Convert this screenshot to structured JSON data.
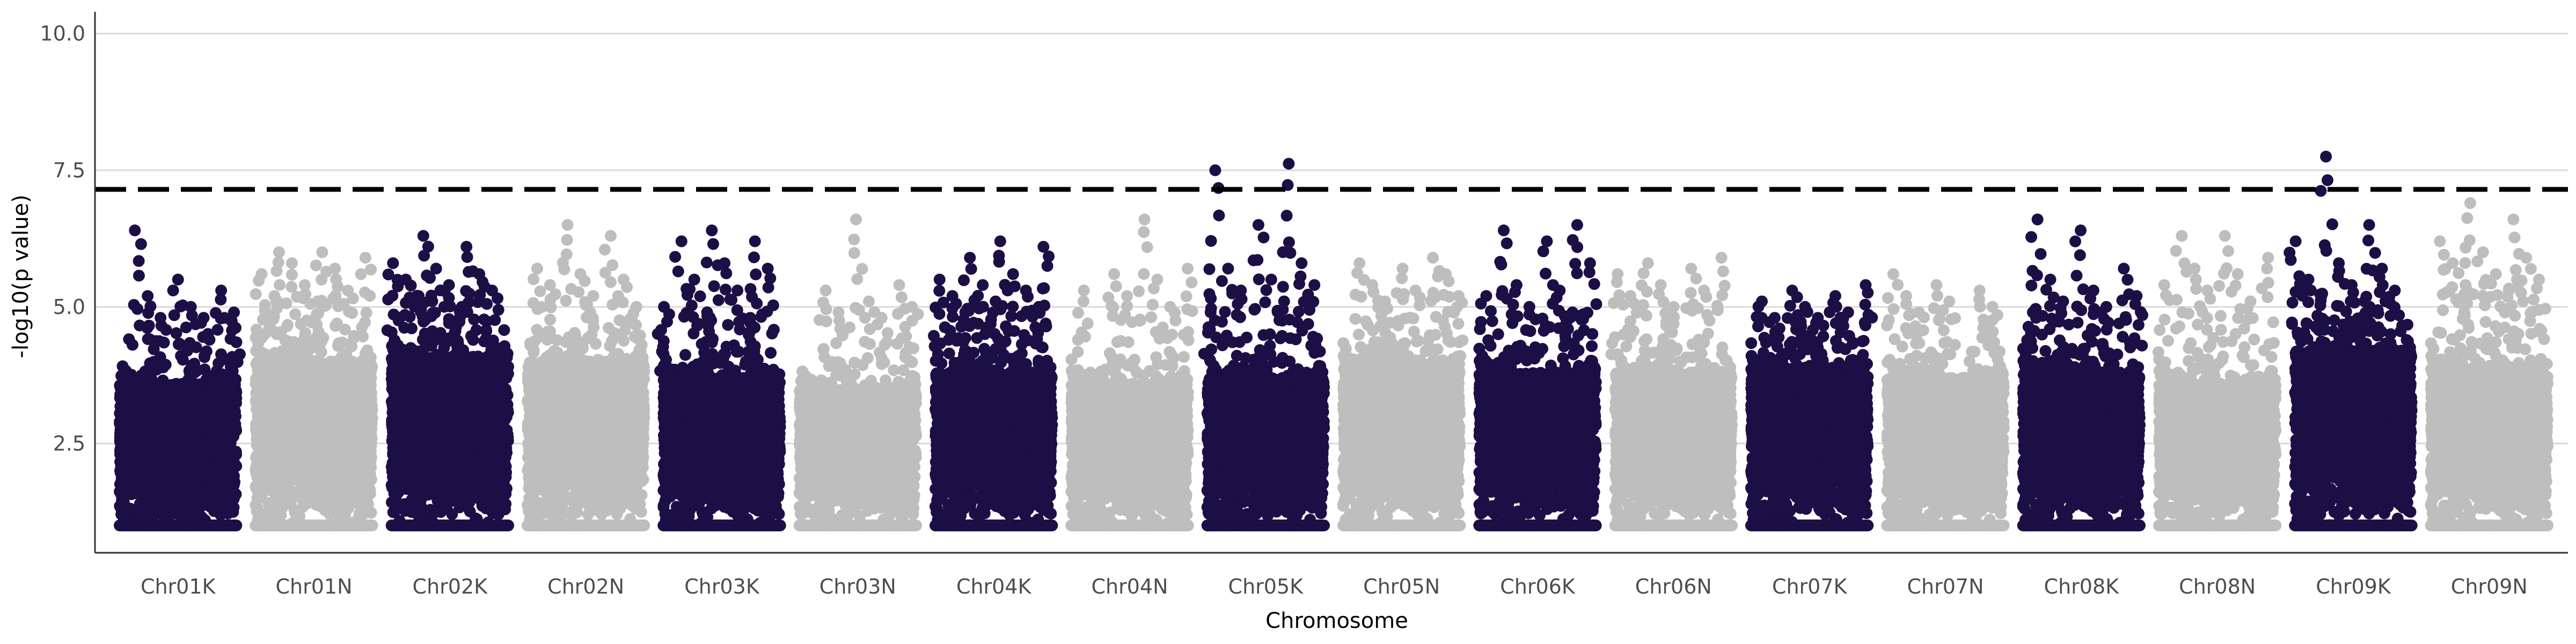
{
  "chart_data": {
    "type": "scatter",
    "title": "",
    "xlabel": "Chromosome",
    "ylabel": "-log10(p value)",
    "ylim": [
      0.5,
      10.4
    ],
    "yticks": [
      2.5,
      5.0,
      7.5,
      10.0
    ],
    "ytick_labels": [
      "2.5",
      "5.0",
      "7.5",
      "10.0"
    ],
    "grid": "horizontal major lines only",
    "legend": "none",
    "threshold": {
      "value": 7.15,
      "style": "dashed",
      "color": "#000000"
    },
    "colors": {
      "dark": "#1c0f45",
      "light": "#bebebe",
      "threshold": "#000000",
      "grid": "#d9d9d9",
      "axis": "#333333"
    },
    "chromosomes": [
      {
        "name": "Chr01K",
        "color": "dark",
        "n_points": 2000,
        "min": 1.0,
        "base_top": 3.6,
        "peaks": [
          6.4,
          5.5,
          5.3,
          5.2,
          5.0,
          4.9,
          4.8,
          4.8
        ]
      },
      {
        "name": "Chr01N",
        "color": "light",
        "n_points": 2000,
        "min": 1.0,
        "base_top": 4.0,
        "peaks": [
          6.0,
          6.0,
          5.9,
          5.8,
          5.7,
          5.6,
          5.4,
          5.3,
          5.2,
          5.1
        ]
      },
      {
        "name": "Chr02K",
        "color": "dark",
        "n_points": 2000,
        "min": 1.0,
        "base_top": 4.1,
        "peaks": [
          6.3,
          6.1,
          5.8,
          5.7,
          5.6,
          5.5,
          5.4,
          5.3,
          5.2,
          5.0
        ]
      },
      {
        "name": "Chr02N",
        "color": "light",
        "n_points": 2000,
        "min": 1.0,
        "base_top": 4.0,
        "peaks": [
          6.5,
          6.3,
          5.7,
          5.6,
          5.5,
          5.4,
          5.2,
          5.0
        ]
      },
      {
        "name": "Chr03K",
        "color": "dark",
        "n_points": 2000,
        "min": 1.0,
        "base_top": 3.7,
        "peaks": [
          6.4,
          6.2,
          6.2,
          5.8,
          5.7,
          5.5,
          5.3,
          5.0,
          4.9,
          4.8
        ]
      },
      {
        "name": "Chr03N",
        "color": "light",
        "n_points": 2000,
        "min": 1.0,
        "base_top": 3.5,
        "peaks": [
          6.6,
          5.4,
          5.3,
          5.1,
          5.0,
          4.9,
          4.8
        ]
      },
      {
        "name": "Chr04K",
        "color": "dark",
        "n_points": 2000,
        "min": 1.0,
        "base_top": 3.8,
        "peaks": [
          6.2,
          6.1,
          5.9,
          5.6,
          5.5,
          5.4,
          5.3,
          5.2,
          5.1,
          5.0,
          4.9
        ]
      },
      {
        "name": "Chr04N",
        "color": "light",
        "n_points": 2000,
        "min": 1.0,
        "base_top": 3.6,
        "peaks": [
          6.6,
          5.7,
          5.6,
          5.5,
          5.3,
          5.2,
          5.0
        ]
      },
      {
        "name": "Chr05K",
        "color": "dark",
        "n_points": 2000,
        "min": 1.0,
        "base_top": 3.7,
        "peaks": [
          7.62,
          7.5,
          6.5,
          5.8,
          5.7,
          5.5,
          5.4,
          5.3,
          5.1,
          4.9
        ]
      },
      {
        "name": "Chr05N",
        "color": "light",
        "n_points": 2000,
        "min": 1.0,
        "base_top": 3.9,
        "peaks": [
          5.9,
          5.8,
          5.7,
          5.6,
          5.4,
          5.3,
          5.2,
          5.1
        ]
      },
      {
        "name": "Chr06K",
        "color": "dark",
        "n_points": 2000,
        "min": 1.0,
        "base_top": 3.8,
        "peaks": [
          6.5,
          6.4,
          6.2,
          5.8,
          5.4,
          5.3,
          5.2,
          5.0,
          4.9
        ]
      },
      {
        "name": "Chr06N",
        "color": "light",
        "n_points": 2000,
        "min": 1.0,
        "base_top": 3.8,
        "peaks": [
          5.9,
          5.8,
          5.7,
          5.6,
          5.4,
          5.3,
          5.2,
          5.0
        ]
      },
      {
        "name": "Chr07K",
        "color": "dark",
        "n_points": 2000,
        "min": 1.0,
        "base_top": 3.9,
        "peaks": [
          5.4,
          5.3,
          5.2,
          5.1,
          5.0,
          4.9,
          4.8,
          4.8
        ]
      },
      {
        "name": "Chr07N",
        "color": "light",
        "n_points": 2000,
        "min": 1.0,
        "base_top": 3.7,
        "peaks": [
          5.6,
          5.4,
          5.3,
          5.2,
          5.1,
          5.0,
          4.9
        ]
      },
      {
        "name": "Chr08K",
        "color": "dark",
        "n_points": 2000,
        "min": 1.0,
        "base_top": 3.8,
        "peaks": [
          6.6,
          6.4,
          5.7,
          5.5,
          5.3,
          5.2,
          5.1,
          5.0,
          4.9
        ]
      },
      {
        "name": "Chr08N",
        "color": "light",
        "n_points": 2000,
        "min": 1.0,
        "base_top": 3.6,
        "peaks": [
          6.3,
          6.3,
          5.9,
          5.7,
          5.6,
          5.4,
          5.3,
          5.1
        ]
      },
      {
        "name": "Chr09K",
        "color": "dark",
        "n_points": 2000,
        "min": 1.0,
        "base_top": 4.2,
        "peaks": [
          7.75,
          6.5,
          6.2,
          5.8,
          5.7,
          5.5,
          5.4,
          5.3,
          5.2,
          5.1
        ]
      },
      {
        "name": "Chr09N",
        "color": "light",
        "n_points": 2000,
        "min": 1.0,
        "base_top": 3.9,
        "peaks": [
          6.9,
          6.6,
          6.2,
          6.0,
          5.9,
          5.8,
          5.6,
          5.5,
          5.4,
          5.3
        ]
      }
    ]
  }
}
